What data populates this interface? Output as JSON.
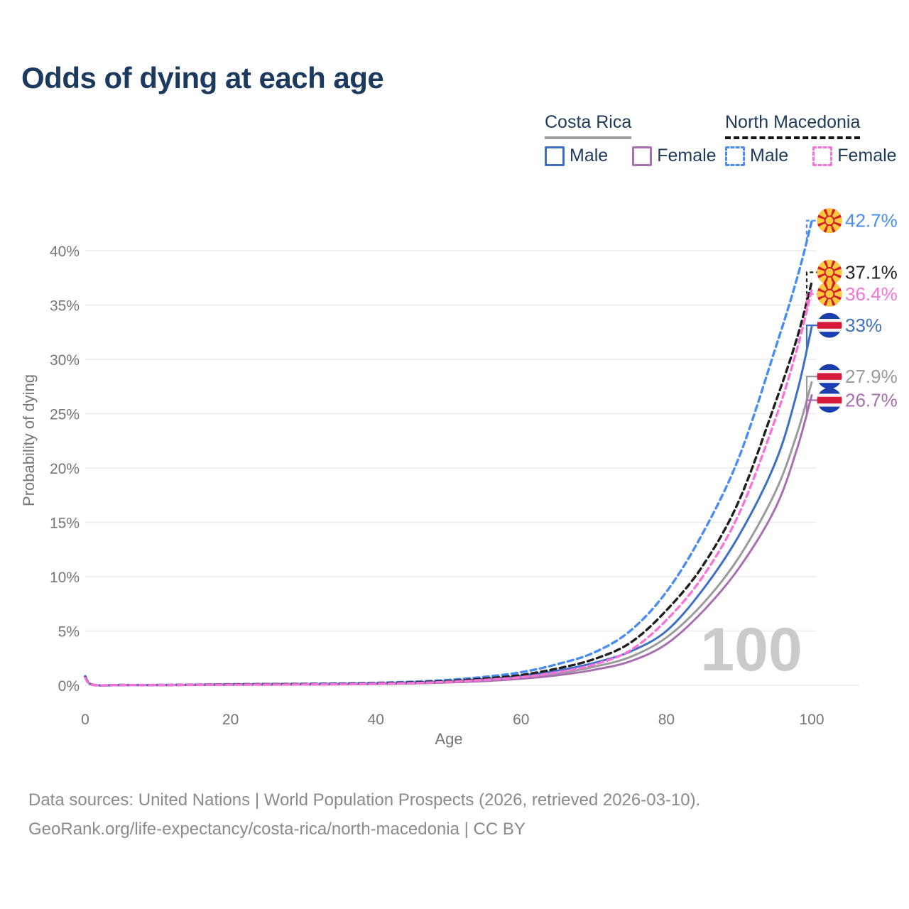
{
  "title": "Odds of dying at each age",
  "legend": {
    "costa_rica": {
      "name": "Costa Rica",
      "male_label": "Male",
      "female_label": "Female"
    },
    "north_macedonia": {
      "name": "North Macedonia",
      "male_label": "Male",
      "female_label": "Female"
    }
  },
  "chart_data": {
    "type": "line",
    "title": "Odds of dying at each age",
    "xlabel": "Age",
    "ylabel": "Probability of dying",
    "xlim": [
      0,
      100
    ],
    "ylim": [
      0,
      44
    ],
    "x_ticks": [
      0,
      20,
      40,
      60,
      80,
      100
    ],
    "y_ticks_pct": [
      0,
      5,
      10,
      15,
      20,
      25,
      30,
      35,
      40
    ],
    "grid": "horizontal",
    "legend_position": "top-right",
    "watermark_age": "100",
    "x": [
      0,
      1,
      5,
      10,
      15,
      20,
      25,
      30,
      35,
      40,
      45,
      50,
      55,
      60,
      65,
      70,
      75,
      80,
      85,
      90,
      95,
      98,
      100
    ],
    "series": [
      {
        "name": "Costa Rica Male",
        "country": "Costa Rica",
        "sex": "Male",
        "color": "#3d6fc4",
        "dashed": false,
        "flag": "cr",
        "end_label": "33%",
        "end_value": 33.0,
        "values": [
          0.8,
          0.055,
          0.025,
          0.025,
          0.05,
          0.09,
          0.11,
          0.12,
          0.14,
          0.18,
          0.26,
          0.38,
          0.58,
          0.88,
          1.35,
          2.05,
          3.1,
          5.0,
          8.8,
          13.8,
          20.5,
          27.0,
          33.0
        ]
      },
      {
        "name": "Costa Rica Both sexes",
        "country": "Costa Rica",
        "sex": "Both",
        "color": "#9b9b9b",
        "dashed": false,
        "flag": "cr",
        "end_label": "27.9%",
        "end_value": 27.9,
        "values": [
          0.75,
          0.05,
          0.02,
          0.02,
          0.04,
          0.07,
          0.09,
          0.1,
          0.12,
          0.15,
          0.22,
          0.32,
          0.48,
          0.73,
          1.1,
          1.7,
          2.6,
          4.4,
          7.5,
          11.8,
          17.8,
          23.2,
          27.9
        ]
      },
      {
        "name": "Costa Rica Female",
        "country": "Costa Rica",
        "sex": "Female",
        "color": "#a86fb0",
        "dashed": false,
        "flag": "cr",
        "end_label": "26.7%",
        "end_value": 26.7,
        "values": [
          0.7,
          0.045,
          0.018,
          0.018,
          0.03,
          0.05,
          0.06,
          0.07,
          0.09,
          0.12,
          0.17,
          0.26,
          0.39,
          0.6,
          0.92,
          1.42,
          2.2,
          3.8,
          6.8,
          10.8,
          16.3,
          21.8,
          26.7
        ]
      },
      {
        "name": "North Macedonia Male",
        "country": "North Macedonia",
        "sex": "Male",
        "color": "#4a8df2",
        "dashed": true,
        "flag": "mk",
        "end_label": "42.7%",
        "end_value": 42.7,
        "values": [
          0.85,
          0.06,
          0.03,
          0.03,
          0.06,
          0.1,
          0.12,
          0.14,
          0.17,
          0.23,
          0.33,
          0.5,
          0.78,
          1.2,
          1.95,
          3.0,
          5.0,
          8.6,
          14.0,
          21.0,
          31.0,
          37.5,
          42.7
        ]
      },
      {
        "name": "North Macedonia Both sexes",
        "country": "North Macedonia",
        "sex": "Both",
        "color": "#1f1f1f",
        "dashed": true,
        "flag": "mk",
        "end_label": "37.1%",
        "end_value": 37.1,
        "values": [
          0.75,
          0.05,
          0.025,
          0.025,
          0.05,
          0.08,
          0.1,
          0.11,
          0.14,
          0.19,
          0.27,
          0.4,
          0.62,
          0.95,
          1.55,
          2.4,
          3.9,
          6.9,
          11.0,
          17.0,
          26.0,
          32.0,
          37.1
        ]
      },
      {
        "name": "North Macedonia Female",
        "country": "North Macedonia",
        "sex": "Female",
        "color": "#f873d8",
        "dashed": true,
        "flag": "mk",
        "end_label": "36.4%",
        "end_value": 36.4,
        "values": [
          0.7,
          0.045,
          0.02,
          0.02,
          0.04,
          0.06,
          0.07,
          0.08,
          0.1,
          0.15,
          0.21,
          0.32,
          0.5,
          0.75,
          1.2,
          1.9,
          3.2,
          6.0,
          10.0,
          15.8,
          24.5,
          31.0,
          36.4
        ]
      }
    ],
    "colors": {
      "title_text": "#1c3a5e",
      "axis_text": "#767676",
      "gridline": "#ececec",
      "watermark": "#cacaca",
      "footer_text": "#8a8a8a",
      "flag_cr_blue": "#1b3faf",
      "flag_cr_red": "#d81939",
      "flag_mk_red": "#d21f26",
      "flag_mk_yellow": "#ffc83d"
    }
  },
  "footer": {
    "line1": "Data sources: United Nations | World Population Prospects (2026, retrieved 2026-03-10).",
    "line2": "GeoRank.org/life-expectancy/costa-rica/north-macedonia | CC BY"
  }
}
